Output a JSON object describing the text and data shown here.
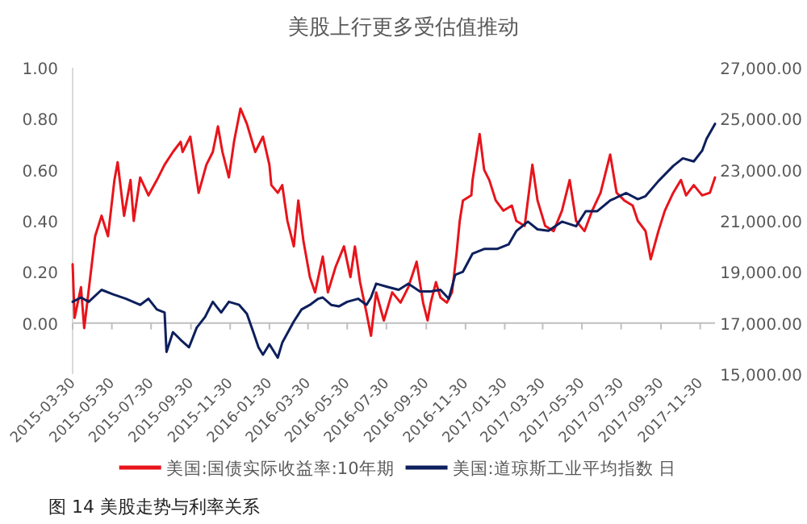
{
  "chart_data": {
    "type": "line",
    "title": "美股上行更多受估值推动",
    "legend": "bottom",
    "grid": false,
    "annotations": [
      "图 14  美股走势与利率关系"
    ],
    "ref_lines": [
      {
        "axis": "y",
        "value": 0,
        "color": "#bfbfbf"
      }
    ],
    "xlim": [
      "2015-03-30",
      "2017-12-23"
    ],
    "xticks": [
      "2015-03-30",
      "2015-05-30",
      "2015-07-30",
      "2015-09-30",
      "2015-11-30",
      "2016-01-30",
      "2016-03-30",
      "2016-05-30",
      "2016-07-30",
      "2016-09-30",
      "2016-11-30",
      "2017-01-30",
      "2017-03-30",
      "2017-05-30",
      "2017-07-30",
      "2017-09-30",
      "2017-11-30"
    ],
    "ylim": [
      -0.2,
      1.0
    ],
    "yticks": [
      {
        "value": 0,
        "label": "0.00"
      },
      {
        "value": 0.2,
        "label": "0.20"
      },
      {
        "value": 0.4,
        "label": "0.40"
      },
      {
        "value": 0.6,
        "label": "0.60"
      },
      {
        "value": 0.8,
        "label": "0.80"
      },
      {
        "value": 1.0,
        "label": "1.00"
      }
    ],
    "y2lim": [
      15000,
      27000
    ],
    "y2ticks": [
      {
        "value": 15000,
        "label": "15,000.00"
      },
      {
        "value": 17000,
        "label": "17,000.00"
      },
      {
        "value": 19000,
        "label": "19,000.00"
      },
      {
        "value": 21000,
        "label": "21,000.00"
      },
      {
        "value": 23000,
        "label": "23,000.00"
      },
      {
        "value": 25000,
        "label": "25,000.00"
      },
      {
        "value": 27000,
        "label": "27,000.00"
      }
    ],
    "series": [
      {
        "name": "美国:国债实际收益率:10年期",
        "color": "#e8141b",
        "x": [
          "2015-03-30",
          "2015-04-02",
          "2015-04-12",
          "2015-04-17",
          "2015-05-04",
          "2015-05-14",
          "2015-05-24",
          "2015-06-03",
          "2015-06-08",
          "2015-06-18",
          "2015-06-28",
          "2015-07-03",
          "2015-07-13",
          "2015-07-26",
          "2015-08-08",
          "2015-08-20",
          "2015-09-02",
          "2015-09-14",
          "2015-09-17",
          "2015-09-29",
          "2015-10-12",
          "2015-10-24",
          "2015-11-03",
          "2015-11-11",
          "2015-11-18",
          "2015-11-28",
          "2015-12-06",
          "2015-12-16",
          "2015-12-26",
          "2016-01-08",
          "2016-01-20",
          "2016-01-30",
          "2016-02-02",
          "2016-02-12",
          "2016-02-19",
          "2016-02-27",
          "2016-03-08",
          "2016-03-15",
          "2016-03-23",
          "2016-04-02",
          "2016-04-10",
          "2016-04-22",
          "2016-04-30",
          "2016-05-12",
          "2016-05-25",
          "2016-06-04",
          "2016-06-11",
          "2016-06-19",
          "2016-06-29",
          "2016-07-06",
          "2016-07-14",
          "2016-07-26",
          "2016-08-08",
          "2016-08-21",
          "2016-09-02",
          "2016-09-15",
          "2016-09-25",
          "2016-10-02",
          "2016-10-07",
          "2016-10-15",
          "2016-10-22",
          "2016-11-01",
          "2016-11-09",
          "2016-11-16",
          "2016-11-21",
          "2016-11-26",
          "2016-12-09",
          "2016-12-11",
          "2016-12-22",
          "2016-12-29",
          "2017-01-06",
          "2017-01-16",
          "2017-01-28",
          "2017-02-10",
          "2017-02-17",
          "2017-03-02",
          "2017-03-14",
          "2017-03-22",
          "2017-04-03",
          "2017-04-16",
          "2017-04-29",
          "2017-05-11",
          "2017-05-21",
          "2017-06-03",
          "2017-06-15",
          "2017-06-28",
          "2017-07-13",
          "2017-07-23",
          "2017-08-04",
          "2017-08-17",
          "2017-08-25",
          "2017-09-06",
          "2017-09-14",
          "2017-09-26",
          "2017-10-06",
          "2017-10-19",
          "2017-10-31",
          "2017-11-08",
          "2017-11-20",
          "2017-12-03",
          "2017-12-15",
          "2017-12-23"
        ],
        "values": [
          0.23,
          0.02,
          0.14,
          -0.02,
          0.34,
          0.42,
          0.34,
          0.56,
          0.63,
          0.42,
          0.56,
          0.4,
          0.57,
          0.5,
          0.56,
          0.62,
          0.67,
          0.71,
          0.67,
          0.73,
          0.51,
          0.62,
          0.67,
          0.77,
          0.67,
          0.57,
          0.71,
          0.84,
          0.78,
          0.67,
          0.73,
          0.62,
          0.54,
          0.51,
          0.54,
          0.4,
          0.3,
          0.48,
          0.32,
          0.18,
          0.12,
          0.26,
          0.12,
          0.22,
          0.3,
          0.18,
          0.3,
          0.16,
          0.04,
          -0.05,
          0.12,
          0.01,
          0.12,
          0.08,
          0.14,
          0.24,
          0.08,
          0.01,
          0.08,
          0.16,
          0.1,
          0.08,
          0.12,
          0.27,
          0.4,
          0.48,
          0.5,
          0.56,
          0.74,
          0.6,
          0.56,
          0.48,
          0.44,
          0.46,
          0.4,
          0.38,
          0.62,
          0.48,
          0.38,
          0.36,
          0.44,
          0.56,
          0.4,
          0.36,
          0.44,
          0.51,
          0.66,
          0.51,
          0.48,
          0.46,
          0.4,
          0.36,
          0.25,
          0.36,
          0.44,
          0.51,
          0.56,
          0.5,
          0.54,
          0.5,
          0.51,
          0.57
        ]
      },
      {
        "name": "美国:道琼斯工业平均指数 日",
        "color": "#0d1f5c",
        "axis": "y2",
        "x": [
          "2015-03-30",
          "2015-04-12",
          "2015-04-24",
          "2015-05-14",
          "2015-06-01",
          "2015-06-21",
          "2015-07-13",
          "2015-07-26",
          "2015-08-08",
          "2015-08-20",
          "2015-08-23",
          "2015-09-02",
          "2015-09-14",
          "2015-09-27",
          "2015-10-09",
          "2015-10-22",
          "2015-11-03",
          "2015-11-16",
          "2015-11-28",
          "2015-12-14",
          "2015-12-26",
          "2016-01-05",
          "2016-01-13",
          "2016-01-20",
          "2016-01-30",
          "2016-02-12",
          "2016-02-19",
          "2016-03-08",
          "2016-03-20",
          "2016-04-02",
          "2016-04-15",
          "2016-04-22",
          "2016-05-05",
          "2016-05-17",
          "2016-05-30",
          "2016-06-16",
          "2016-06-29",
          "2016-07-06",
          "2016-07-14",
          "2016-07-31",
          "2016-08-18",
          "2016-09-02",
          "2016-09-20",
          "2016-10-07",
          "2016-10-22",
          "2016-11-04",
          "2016-11-14",
          "2016-11-26",
          "2016-12-11",
          "2016-12-29",
          "2017-01-18",
          "2017-02-05",
          "2017-02-17",
          "2017-03-07",
          "2017-03-22",
          "2017-04-08",
          "2017-04-29",
          "2017-05-21",
          "2017-06-05",
          "2017-06-23",
          "2017-07-13",
          "2017-08-07",
          "2017-08-25",
          "2017-09-06",
          "2017-09-26",
          "2017-10-19",
          "2017-11-03",
          "2017-11-20",
          "2017-12-03",
          "2017-12-10",
          "2017-12-23"
        ],
        "values": [
          17830,
          18000,
          17830,
          18300,
          18120,
          17950,
          17710,
          17950,
          17530,
          17410,
          15870,
          16640,
          16340,
          16050,
          16820,
          17240,
          17830,
          17410,
          17830,
          17710,
          17360,
          16640,
          16050,
          15760,
          16170,
          15640,
          16230,
          17060,
          17530,
          17710,
          17950,
          18000,
          17710,
          17650,
          17830,
          17950,
          17710,
          18000,
          18540,
          18420,
          18300,
          18540,
          18240,
          18240,
          18300,
          17950,
          18890,
          19010,
          19720,
          19900,
          19900,
          20080,
          20600,
          20970,
          20670,
          20610,
          20970,
          20790,
          21380,
          21380,
          21800,
          22090,
          21850,
          21970,
          22560,
          23150,
          23450,
          23330,
          23750,
          24220,
          24800
        ]
      }
    ]
  }
}
